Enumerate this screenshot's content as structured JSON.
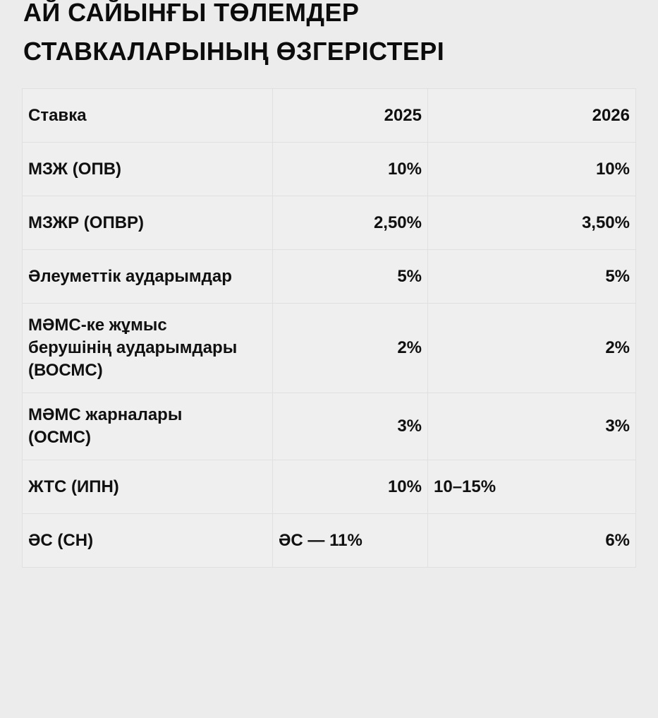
{
  "page": {
    "title": "АЙ САЙЫНҒЫ ТӨЛЕМДЕР\nСТАВКАЛАРЫНЫҢ ӨЗГЕРІСТЕРІ"
  },
  "colors": {
    "page_background": "#ececec",
    "cell_background": "#efefef",
    "border": "#e0e0e0",
    "text": "#101010"
  },
  "table": {
    "header": {
      "col1": "Ставка",
      "col2": "2025",
      "col3": "2026"
    },
    "rows": [
      {
        "label": "МЗЖ (ОПВ)",
        "y2025": "10%",
        "y2026": "10%"
      },
      {
        "label": "МЗЖР (ОПВР)",
        "y2025": "2,50%",
        "y2026": "3,50%"
      },
      {
        "label": "Әлеуметтік аударымдар",
        "y2025": "5%",
        "y2026": "5%"
      },
      {
        "label": "МӘМС-ке жұмыс\nберушінің аударымдары\n(ВОСМС)",
        "y2025": "2%",
        "y2026": "2%"
      },
      {
        "label": "МӘМС жарналары\n(ОСМС)",
        "y2025": "3%",
        "y2026": "3%"
      },
      {
        "label": "ЖТС (ИПН)",
        "y2025": "10%",
        "y2026": "10–15%"
      },
      {
        "label": "ӘС (СН)",
        "y2025": "ӘС — 11%",
        "y2026": "6%"
      }
    ]
  }
}
